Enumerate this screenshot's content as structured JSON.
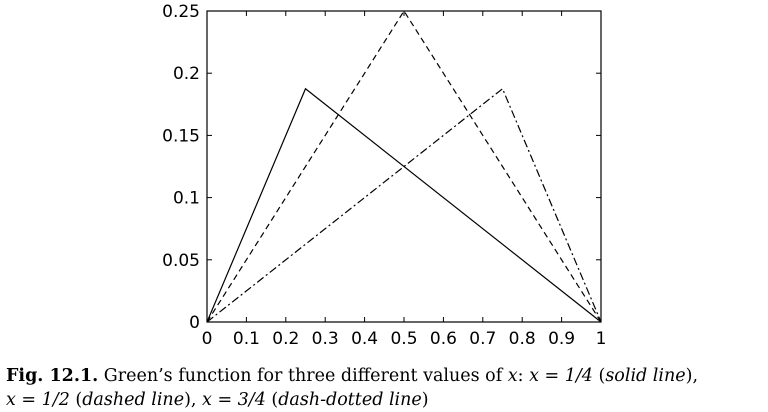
{
  "chart_data": {
    "type": "line",
    "title": "",
    "xlabel": "",
    "ylabel": "",
    "xlim": [
      0,
      1
    ],
    "ylim": [
      0,
      0.25
    ],
    "xticks": [
      "0",
      "0.1",
      "0.2",
      "0.3",
      "0.4",
      "0.5",
      "0.6",
      "0.7",
      "0.8",
      "0.9",
      "1"
    ],
    "yticks": [
      "0",
      "0.05",
      "0.1",
      "0.15",
      "0.2",
      "0.25"
    ],
    "grid": false,
    "series": [
      {
        "style": "solid",
        "x": [
          0,
          0.25,
          1
        ],
        "y": [
          0,
          0.1875,
          0
        ]
      },
      {
        "style": "dashed",
        "x": [
          0,
          0.5,
          1
        ],
        "y": [
          0,
          0.25,
          0
        ]
      },
      {
        "style": "dash-dotted",
        "x": [
          0,
          0.75,
          1
        ],
        "y": [
          0,
          0.1875,
          0
        ]
      }
    ]
  },
  "caption": {
    "label": "Fig. 12.1.",
    "text_1": " Green’s function for three different values of ",
    "var_x": "x",
    "text_2": ": ",
    "eq_1": "x = 1/4",
    "paren_open_1": " (",
    "desc_1": "solid line",
    "paren_close_1": "),",
    "eq_2": "x = 1/2",
    "paren_open_2": " (",
    "desc_2": "dashed line",
    "paren_close_2": "), ",
    "eq_3": "x = 3/4",
    "paren_open_3": " (",
    "desc_3": "dash-dotted line",
    "paren_close_3": ")"
  }
}
